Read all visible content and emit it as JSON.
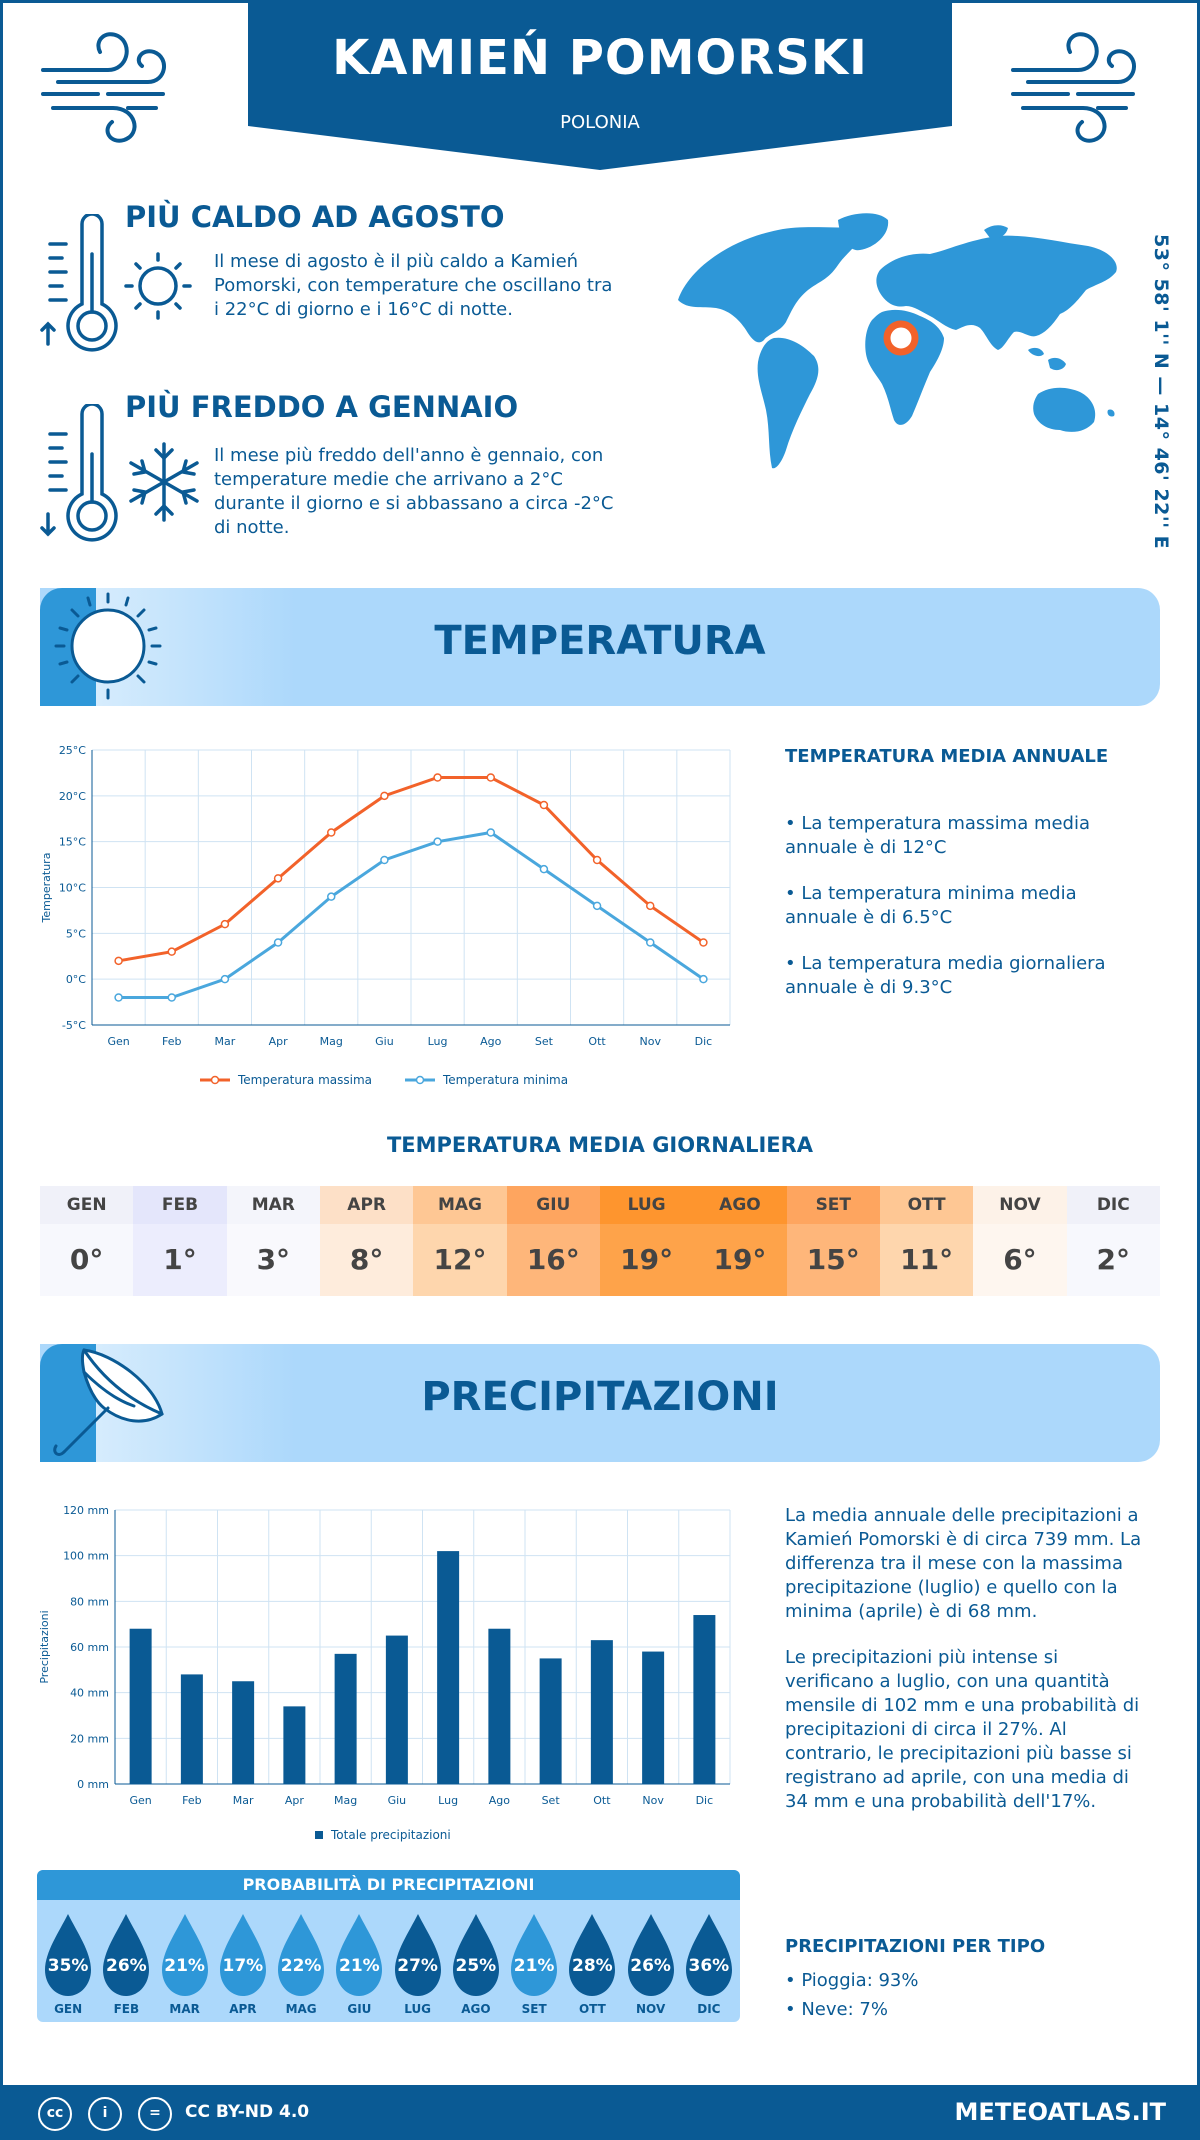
{
  "header": {
    "city": "KAMIEŃ POMORSKI",
    "country": "POLONIA"
  },
  "coords": "53° 58' 1'' N — 14° 46' 22'' E",
  "hottest": {
    "title": "PIÙ CALDO AD AGOSTO",
    "text": "Il mese di agosto è il più caldo a Kamień Pomorski, con temperature che oscillano tra i 22°C di giorno e i 16°C di notte."
  },
  "coldest": {
    "title": "PIÙ FREDDO A GENNAIO",
    "text": "Il mese più freddo dell'anno è gennaio, con temperature medie che arrivano a 2°C durante il giorno e si abbassano a circa -2°C di notte."
  },
  "temp_section": {
    "title": "TEMPERATURA"
  },
  "temp_summary": {
    "title": "TEMPERATURA MEDIA ANNUALE",
    "items": [
      "• La temperatura massima media annuale è di 12°C",
      "• La temperatura minima media annuale è di 6.5°C",
      "• La temperatura media giornaliera annuale è di 9.3°C"
    ]
  },
  "daily": {
    "title": "TEMPERATURA MEDIA GIORNALIERA",
    "months": [
      "GEN",
      "FEB",
      "MAR",
      "APR",
      "MAG",
      "GIU",
      "LUG",
      "AGO",
      "SET",
      "OTT",
      "NOV",
      "DIC"
    ],
    "values": [
      "0°",
      "1°",
      "3°",
      "8°",
      "12°",
      "16°",
      "19°",
      "19°",
      "15°",
      "11°",
      "6°",
      "2°"
    ],
    "head_colors": [
      "#f0f1f9",
      "#e4e6fb",
      "#f4f5fb",
      "#fde0c7",
      "#fec794",
      "#fea55f",
      "#fe952e",
      "#fe952e",
      "#fea55f",
      "#fec794",
      "#fdf2e8",
      "#f0f1f9"
    ],
    "cell_colors": [
      "#f7f8fd",
      "#ecedfd",
      "#f9f9fd",
      "#feecdc",
      "#fed6ad",
      "#feb67a",
      "#fea34a",
      "#fea34a",
      "#feb67a",
      "#fed6ad",
      "#fef6ef",
      "#f7f8fd"
    ]
  },
  "precip_section": {
    "title": "PRECIPITAZIONI"
  },
  "precip_text": [
    "La media annuale delle precipitazioni a Kamień Pomorski è di circa 739 mm. La differenza tra il mese con la massima precipitazione (luglio) e quello con la minima (aprile) è di 68 mm.",
    "Le precipitazioni più intense si verificano a luglio, con una quantità mensile di 102 mm e una probabilità di precipitazioni di circa il 27%. Al contrario, le precipitazioni più basse si registrano ad aprile, con una media di 34 mm e una probabilità dell'17%."
  ],
  "prob": {
    "title": "PROBABILITÀ DI PRECIPITAZIONI",
    "months": [
      "GEN",
      "FEB",
      "MAR",
      "APR",
      "MAG",
      "GIU",
      "LUG",
      "AGO",
      "SET",
      "OTT",
      "NOV",
      "DIC"
    ],
    "values": [
      "35%",
      "26%",
      "21%",
      "17%",
      "22%",
      "21%",
      "27%",
      "25%",
      "21%",
      "28%",
      "26%",
      "36%"
    ]
  },
  "precip_type": {
    "title": "PRECIPITAZIONI PER TIPO",
    "rain": "• Pioggia: 93%",
    "snow": "• Neve: 7%"
  },
  "footer": {
    "license": "CC BY-ND 4.0",
    "site": "METEOATLAS.IT"
  },
  "colors": {
    "dark": "#0a5a94",
    "mid": "#2e97d8",
    "light": "#acd8fb",
    "max_line": "#f2622a",
    "min_line": "#4aa7dd"
  },
  "chart_data": [
    {
      "type": "line",
      "categories": [
        "Gen",
        "Feb",
        "Mar",
        "Apr",
        "Mag",
        "Giu",
        "Lug",
        "Ago",
        "Set",
        "Ott",
        "Nov",
        "Dic"
      ],
      "series": [
        {
          "name": "Temperatura massima",
          "values": [
            2,
            3,
            6,
            11,
            16,
            20,
            22,
            22,
            19,
            13,
            8,
            4
          ]
        },
        {
          "name": "Temperatura minima",
          "values": [
            -2,
            -2,
            0,
            4,
            9,
            13,
            15,
            16,
            12,
            8,
            4,
            0
          ]
        }
      ],
      "ylabel": "Temperatura",
      "yticks": [
        "-5°C",
        "0°C",
        "5°C",
        "10°C",
        "15°C",
        "20°C",
        "25°C"
      ],
      "ylim": [
        -5,
        25
      ],
      "grid": true,
      "legend": "bottom"
    },
    {
      "type": "bar",
      "categories": [
        "Gen",
        "Feb",
        "Mar",
        "Apr",
        "Mag",
        "Giu",
        "Lug",
        "Ago",
        "Set",
        "Ott",
        "Nov",
        "Dic"
      ],
      "series": [
        {
          "name": "Totale precipitazioni",
          "values": [
            68,
            48,
            45,
            34,
            57,
            65,
            102,
            68,
            55,
            63,
            58,
            74
          ]
        }
      ],
      "ylabel": "Precipitazioni",
      "yticks": [
        "0 mm",
        "20 mm",
        "40 mm",
        "60 mm",
        "80 mm",
        "100 mm",
        "120 mm"
      ],
      "ylim": [
        0,
        120
      ],
      "grid": true,
      "legend": "bottom"
    }
  ]
}
